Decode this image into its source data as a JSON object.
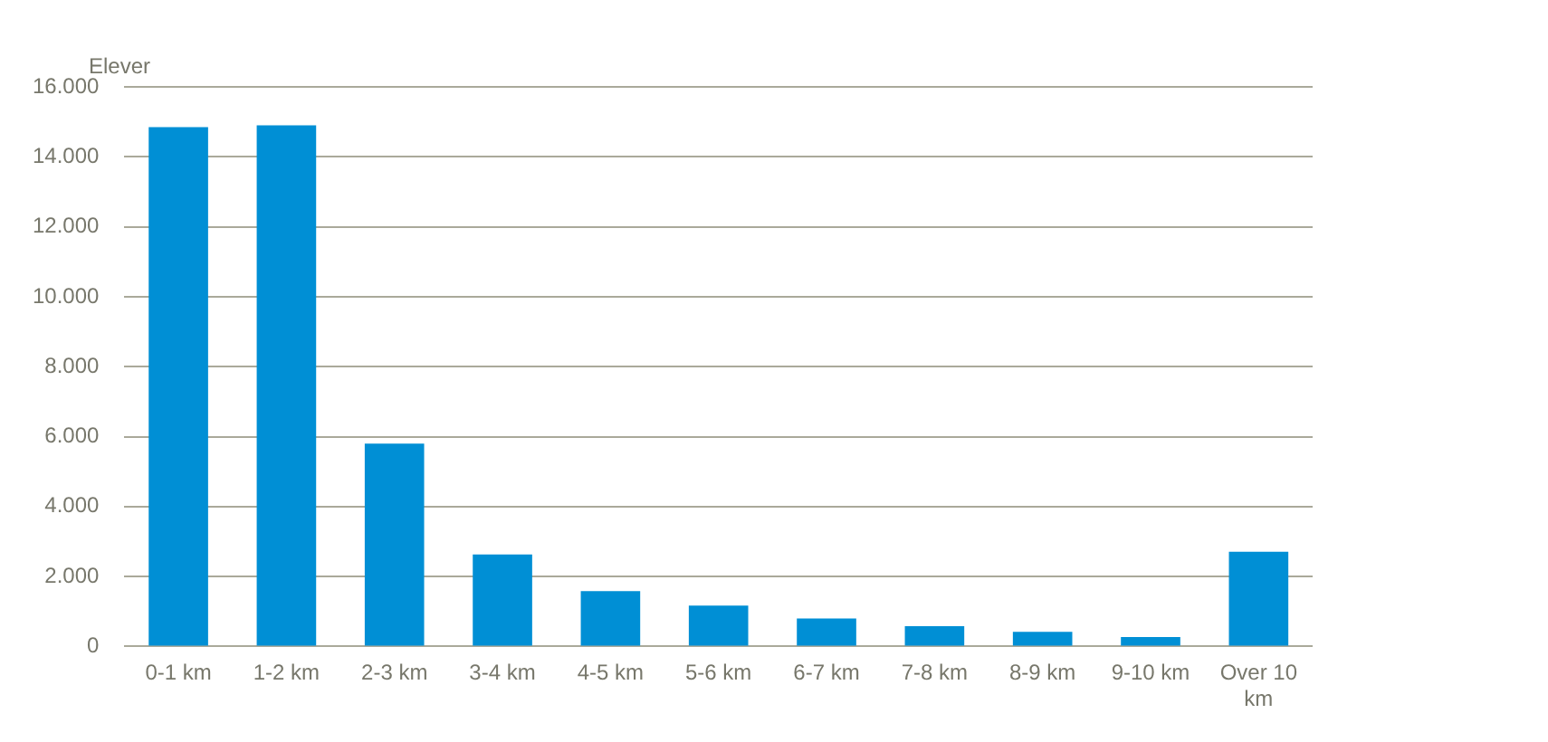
{
  "chart_data": {
    "type": "bar",
    "ylabel": "Elever",
    "categories": [
      "0-1 km",
      "1-2 km",
      "2-3 km",
      "3-4 km",
      "4-5 km",
      "5-6 km",
      "6-7 km",
      "7-8 km",
      "8-9 km",
      "9-10 km",
      "Over 10 km"
    ],
    "values": [
      14850,
      14900,
      5800,
      2630,
      1580,
      1170,
      800,
      580,
      420,
      270,
      2710
    ],
    "color": "#008fd5",
    "ylim": [
      0,
      16000
    ],
    "yticks": [
      {
        "value": 0,
        "label": "0"
      },
      {
        "value": 2000,
        "label": "2.000"
      },
      {
        "value": 4000,
        "label": "4.000"
      },
      {
        "value": 6000,
        "label": "6.000"
      },
      {
        "value": 8000,
        "label": "8.000"
      },
      {
        "value": 10000,
        "label": "10.000"
      },
      {
        "value": 12000,
        "label": "12.000"
      },
      {
        "value": 14000,
        "label": "14.000"
      },
      {
        "value": 16000,
        "label": "16.000"
      }
    ],
    "grid": "y",
    "legend": false
  }
}
